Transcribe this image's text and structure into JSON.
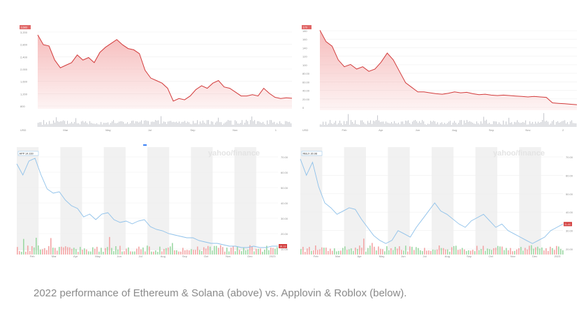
{
  "caption": "2022 performance of Ethereum & Solana (above) vs. Applovin & Roblox (below).",
  "chart_data": [
    {
      "type": "area",
      "color": "#d23b3b",
      "fill": "#f5b5b5",
      "y_ticks": [
        "3,200",
        "2,800",
        "2,400",
        "2,000",
        "1,600",
        "1,200",
        "800"
      ],
      "x_ticks": [
        "Mar",
        "May",
        "Jul",
        "Sep",
        "Nov",
        "1"
      ],
      "currency": "USD",
      "badge": "3,683",
      "ylim": [
        800,
        3900
      ],
      "values": [
        3683,
        3300,
        3250,
        2700,
        2400,
        2500,
        2600,
        2900,
        2700,
        2800,
        2600,
        3000,
        3200,
        3350,
        3500,
        3300,
        3150,
        3100,
        2950,
        2300,
        2000,
        1900,
        1800,
        1600,
        1100,
        1200,
        1150,
        1300,
        1550,
        1700,
        1600,
        1800,
        1900,
        1650,
        1600,
        1450,
        1300,
        1300,
        1350,
        1300,
        1600,
        1400,
        1250,
        1200,
        1230,
        1210
      ]
    },
    {
      "type": "area",
      "color": "#d23b3b",
      "fill": "#f5b5b5",
      "y_ticks": [
        "180",
        "160",
        "140",
        "120",
        "100",
        "80.00",
        "60.00",
        "40.00",
        "20.00",
        "0"
      ],
      "x_ticks": [
        "Feb",
        "Apr",
        "Jun",
        "Aug",
        "Sep",
        "Nov",
        "2"
      ],
      "currency": "USD",
      "badge": "170",
      "ylim": [
        0,
        180
      ],
      "values": [
        175,
        150,
        140,
        110,
        95,
        100,
        90,
        95,
        85,
        90,
        105,
        125,
        110,
        85,
        60,
        50,
        40,
        40,
        38,
        36,
        35,
        37,
        40,
        38,
        39,
        36,
        34,
        35,
        33,
        32,
        33,
        32,
        31,
        30,
        29,
        30,
        29,
        28,
        16,
        15,
        14,
        13,
        12
      ]
    },
    {
      "type": "line",
      "color": "#8ec1ea",
      "y_ticks": [
        "70.00",
        "60.00",
        "50.00",
        "40.00",
        "30.00",
        "20.00",
        "10.00"
      ],
      "x_ticks": [
        "Feb",
        "Mar",
        "Apr",
        "May",
        "Jun",
        "Jul",
        "Aug",
        "Sep",
        "Oct",
        "Nov",
        "Dec",
        "2023"
      ],
      "badge": "APP 14.160",
      "price_tag": "16.13",
      "watermark": "yahoo/finance",
      "ylim": [
        5,
        75
      ],
      "values": [
        68,
        60,
        70,
        72,
        60,
        50,
        47,
        48,
        42,
        38,
        36,
        30,
        32,
        28,
        32,
        33,
        28,
        26,
        27,
        25,
        27,
        28,
        23,
        21,
        20,
        18,
        17,
        16,
        15,
        15,
        13,
        12,
        11,
        11,
        10,
        9,
        9,
        8,
        8,
        9,
        8,
        8,
        9,
        9
      ]
    },
    {
      "type": "line",
      "color": "#8ec1ea",
      "y_ticks": [
        "70.00",
        "60.00",
        "50.00",
        "40.00",
        "30.00",
        "20.00"
      ],
      "x_ticks": [
        "Feb",
        "Mar",
        "Apr",
        "May",
        "Jun",
        "Jul",
        "Aug",
        "Sep",
        "Oct",
        "Nov",
        "Dec",
        "2023"
      ],
      "badge": "RBLX 30.98",
      "price_tag": "31.60",
      "watermark": "yahoo/finance",
      "ylim": [
        15,
        75
      ],
      "values": [
        72,
        62,
        70,
        55,
        45,
        42,
        38,
        40,
        42,
        41,
        35,
        30,
        25,
        22,
        20,
        22,
        28,
        26,
        24,
        30,
        35,
        40,
        45,
        40,
        38,
        35,
        32,
        30,
        34,
        36,
        38,
        34,
        30,
        32,
        28,
        26,
        24,
        22,
        20,
        22,
        24,
        28,
        30,
        32
      ]
    }
  ]
}
